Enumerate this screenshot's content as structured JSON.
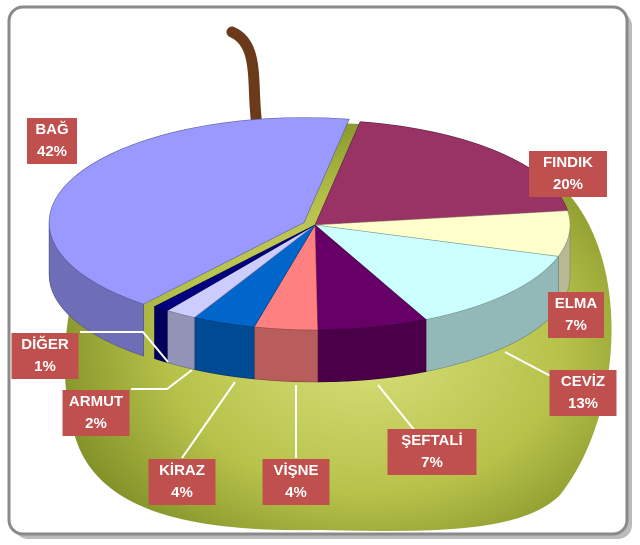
{
  "chart_data": {
    "type": "pie",
    "categories": [
      "BAĞ",
      "FINDIK",
      "ELMA",
      "CEVİZ",
      "ŞEFTALİ",
      "VİŞNE",
      "KİRAZ",
      "ARMUT",
      "DİĞER"
    ],
    "values": [
      42,
      20,
      7,
      13,
      7,
      4,
      4,
      2,
      1
    ],
    "value_labels": [
      "42%",
      "20%",
      "7%",
      "13%",
      "7%",
      "4%",
      "4%",
      "2%",
      "1%"
    ],
    "colors": [
      "#9999ff",
      "#993366",
      "#ffffcc",
      "#ccffff",
      "#660066",
      "#ff8080",
      "#0066cc",
      "#ccccff",
      "#000080"
    ]
  }
}
